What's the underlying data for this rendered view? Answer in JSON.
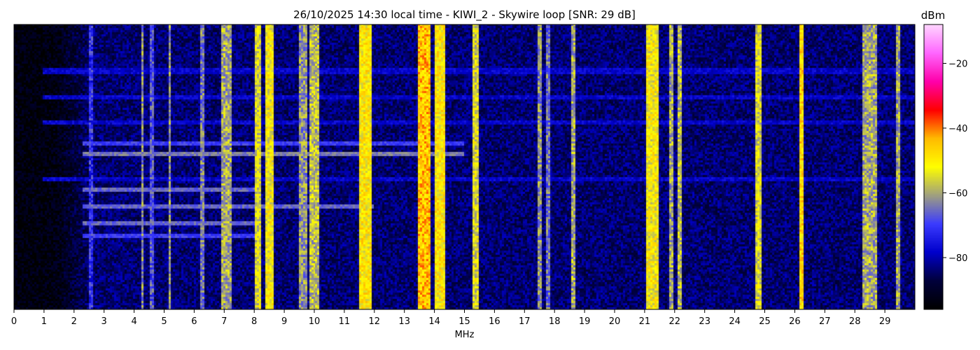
{
  "chart_data": {
    "type": "heatmap",
    "title": "26/10/2025 14:30 local time - KIWI_2 - Skywire loop [SNR: 29 dB]",
    "xlabel": "MHz",
    "ylabel": "",
    "xlim": [
      0,
      30
    ],
    "x_ticks": [
      0,
      1,
      2,
      3,
      4,
      5,
      6,
      7,
      8,
      9,
      10,
      11,
      12,
      13,
      14,
      15,
      16,
      17,
      18,
      19,
      20,
      21,
      22,
      23,
      24,
      25,
      26,
      27,
      28,
      29
    ],
    "colorbar": {
      "label": "dBm",
      "range": [
        -96,
        -8
      ],
      "ticks": [
        -20,
        -40,
        -60,
        -80
      ],
      "colormap": [
        "#000000",
        "#00003c",
        "#0000cc",
        "#3c3cff",
        "#a0a080",
        "#ffff00",
        "#ffbb00",
        "#ff0000",
        "#ff00aa",
        "#ff66ff",
        "#ffd6ff"
      ]
    },
    "background_dbm": -84,
    "noise_floor_low_freq_dbm": -94,
    "signal_bands": [
      {
        "f": 2.6,
        "w": 0.05,
        "dbm": -72
      },
      {
        "f": 4.3,
        "w": 0.05,
        "dbm": -62
      },
      {
        "f": 4.6,
        "w": 0.04,
        "dbm": -68
      },
      {
        "f": 5.2,
        "w": 0.06,
        "dbm": -62
      },
      {
        "f": 6.3,
        "w": 0.08,
        "dbm": -64
      },
      {
        "f": 7.1,
        "w": 0.25,
        "dbm": -60
      },
      {
        "f": 8.15,
        "w": 0.15,
        "dbm": -55
      },
      {
        "f": 8.5,
        "w": 0.25,
        "dbm": -52
      },
      {
        "f": 9.6,
        "w": 0.2,
        "dbm": -62
      },
      {
        "f": 10.0,
        "w": 0.3,
        "dbm": -58
      },
      {
        "f": 11.7,
        "w": 0.35,
        "dbm": -50
      },
      {
        "f": 13.7,
        "w": 0.35,
        "dbm": -45
      },
      {
        "f": 14.2,
        "w": 0.25,
        "dbm": -50
      },
      {
        "f": 15.4,
        "w": 0.15,
        "dbm": -55
      },
      {
        "f": 17.5,
        "w": 0.05,
        "dbm": -62
      },
      {
        "f": 17.8,
        "w": 0.04,
        "dbm": -65
      },
      {
        "f": 18.6,
        "w": 0.06,
        "dbm": -60
      },
      {
        "f": 21.3,
        "w": 0.35,
        "dbm": -52
      },
      {
        "f": 21.9,
        "w": 0.1,
        "dbm": -60
      },
      {
        "f": 22.2,
        "w": 0.05,
        "dbm": -58
      },
      {
        "f": 24.8,
        "w": 0.08,
        "dbm": -55
      },
      {
        "f": 26.25,
        "w": 0.05,
        "dbm": -48
      },
      {
        "f": 28.5,
        "w": 0.45,
        "dbm": -60
      },
      {
        "f": 29.45,
        "w": 0.04,
        "dbm": -60
      }
    ],
    "horizontal_interference": [
      {
        "y": 0.455,
        "f_from": 2.3,
        "f_to": 15.0,
        "dbm": -64
      },
      {
        "y": 0.42,
        "f_from": 2.3,
        "f_to": 15.0,
        "dbm": -70
      },
      {
        "y": 0.64,
        "f_from": 2.3,
        "f_to": 12.0,
        "dbm": -66
      },
      {
        "y": 0.58,
        "f_from": 2.3,
        "f_to": 8.0,
        "dbm": -66
      },
      {
        "y": 0.7,
        "f_from": 2.3,
        "f_to": 8.0,
        "dbm": -66
      },
      {
        "y": 0.74,
        "f_from": 2.3,
        "f_to": 8.0,
        "dbm": -70
      },
      {
        "y": 0.165,
        "f_from": 1.0,
        "f_to": 30.0,
        "dbm": -78
      },
      {
        "y": 0.345,
        "f_from": 1.0,
        "f_to": 30.0,
        "dbm": -78
      },
      {
        "y": 0.255,
        "f_from": 1.0,
        "f_to": 30.0,
        "dbm": -78
      },
      {
        "y": 0.545,
        "f_from": 1.0,
        "f_to": 30.0,
        "dbm": -78
      }
    ]
  }
}
